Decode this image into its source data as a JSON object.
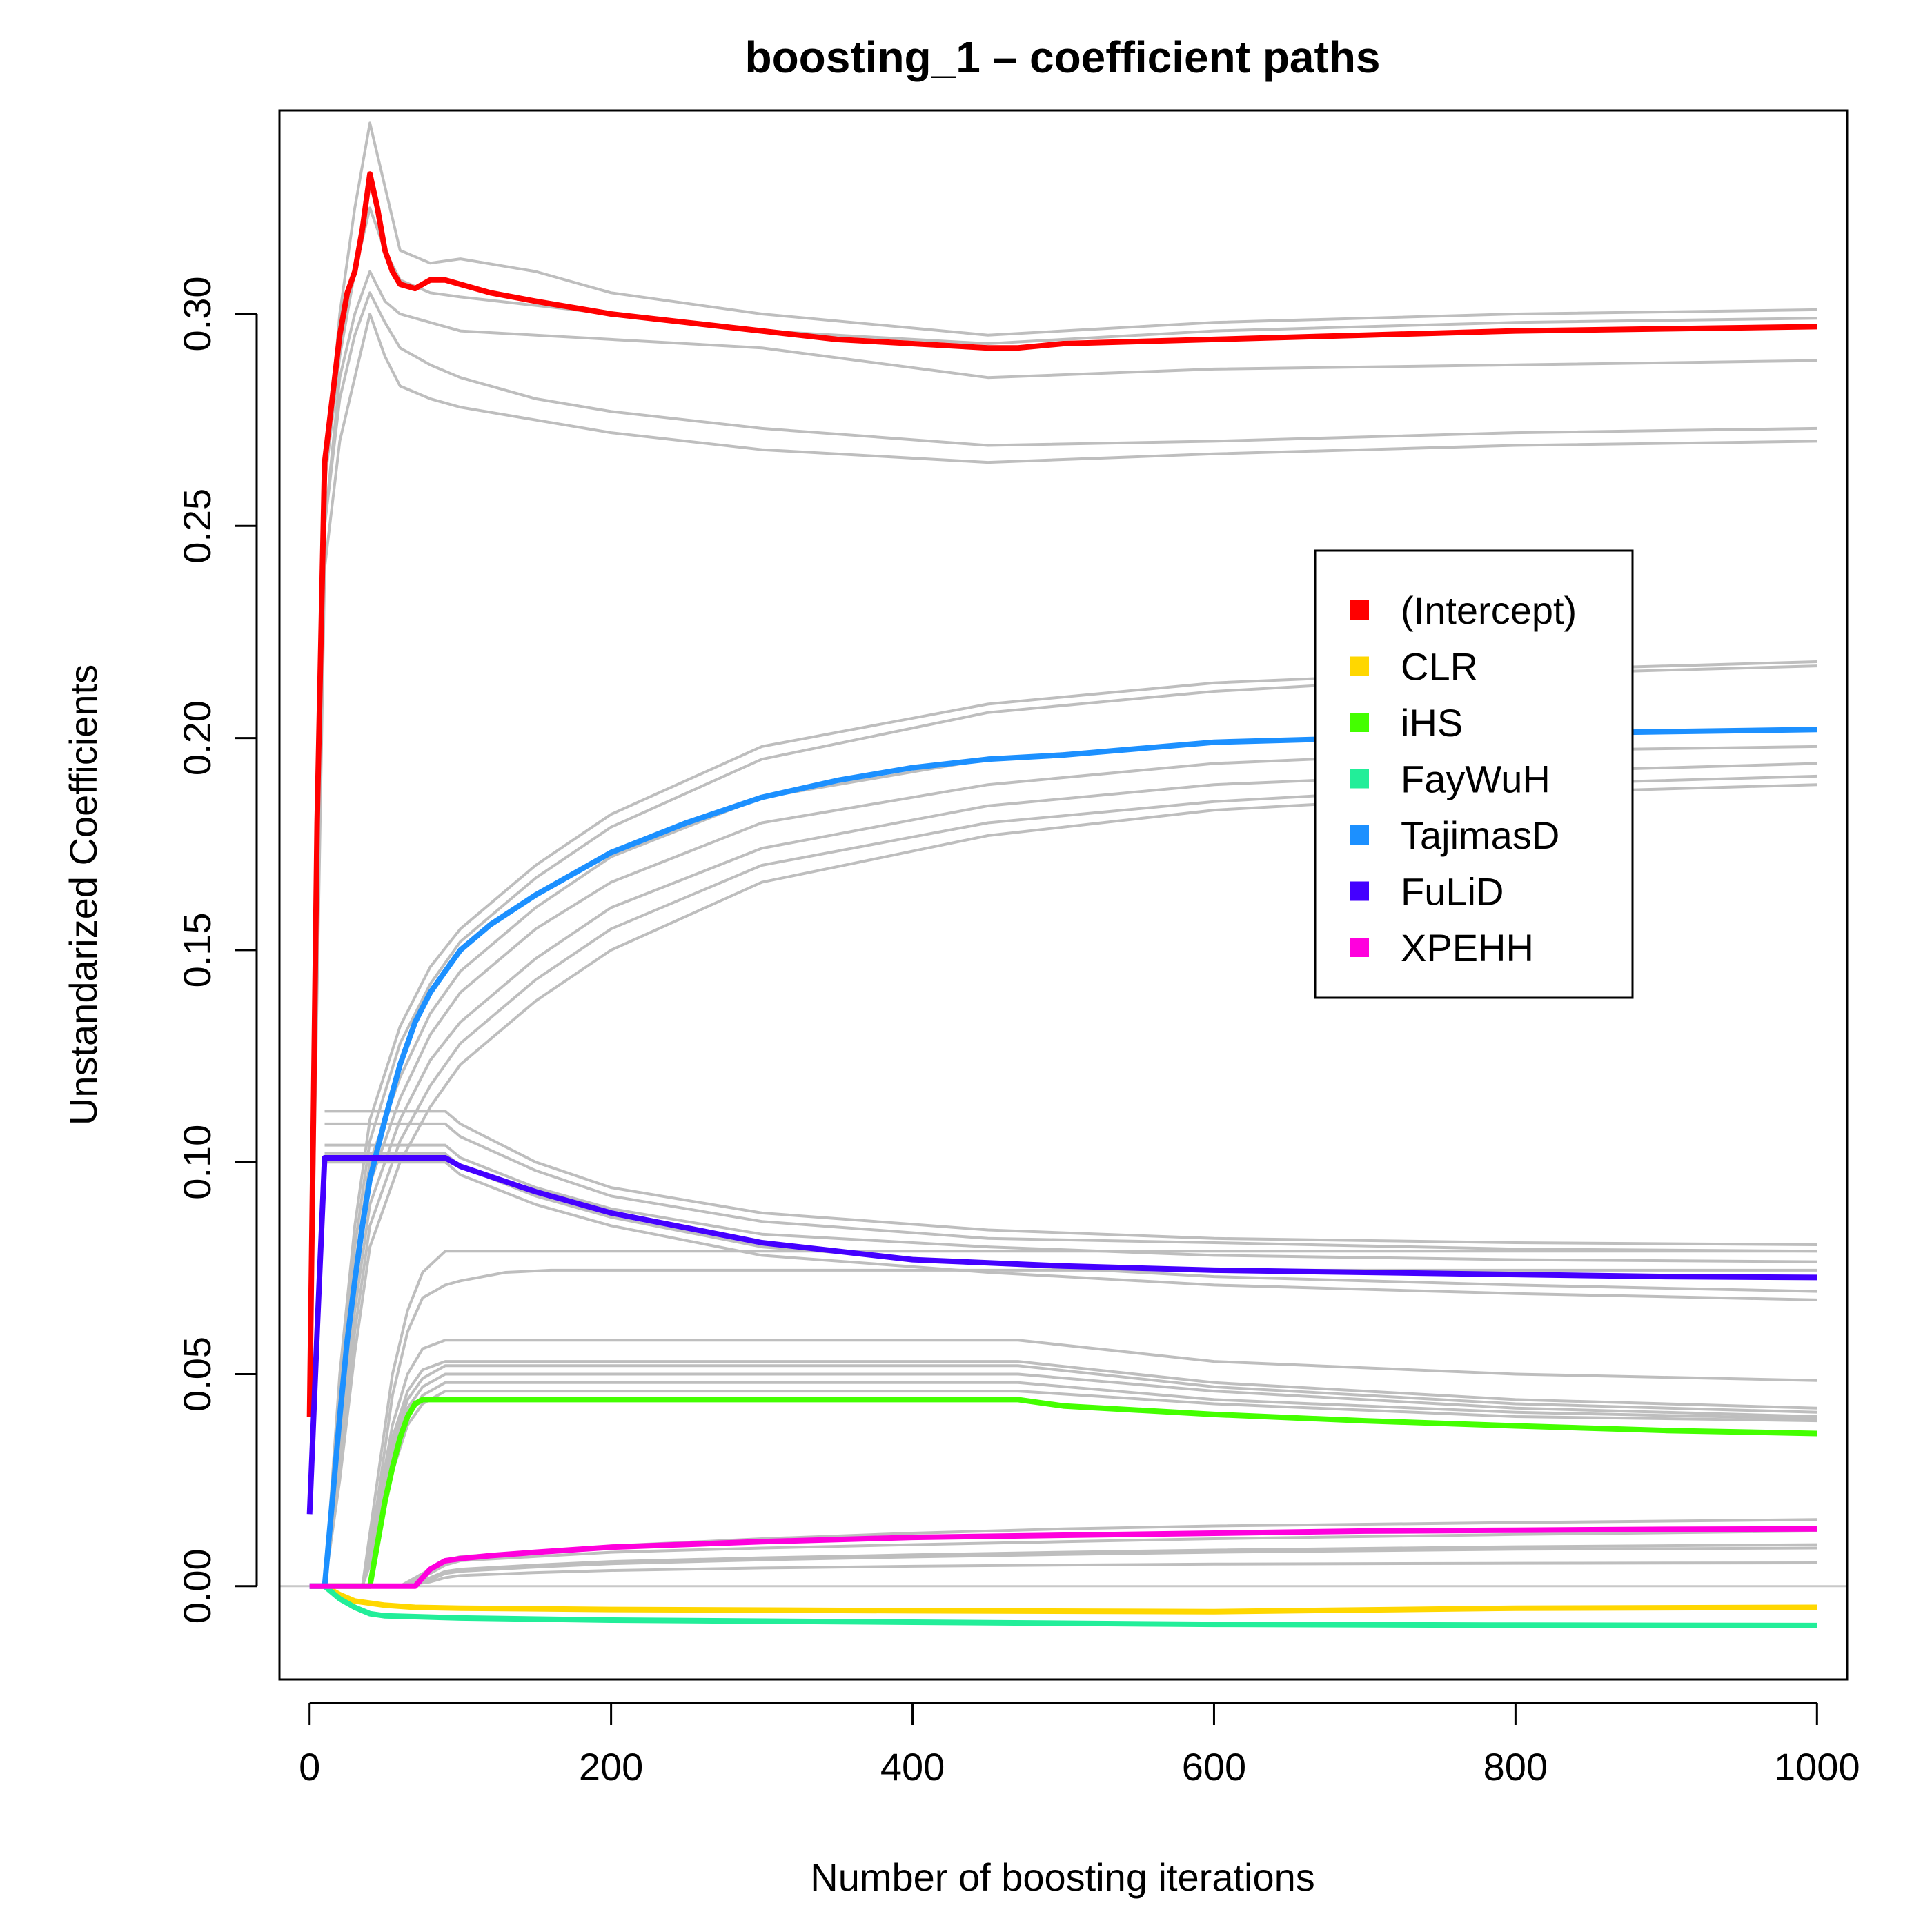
{
  "chart_data": {
    "type": "line",
    "title": "boosting_1  – coefficient paths",
    "xlabel": "Number of boosting iterations",
    "ylabel": "Unstandarized Coefficients",
    "xlim": [
      -20,
      1020
    ],
    "ylim": [
      -0.022,
      0.348
    ],
    "xticks": [
      0,
      200,
      400,
      600,
      800,
      1000
    ],
    "xtick_labels": [
      "0",
      "200",
      "400",
      "600",
      "800",
      "1000"
    ],
    "yticks": [
      0.0,
      0.05,
      0.1,
      0.15,
      0.2,
      0.25,
      0.3
    ],
    "ytick_labels": [
      "0.00",
      "0.05",
      "0.10",
      "0.15",
      "0.20",
      "0.25",
      "0.30"
    ],
    "grid": false,
    "legend_position": "right",
    "zero_line_color": "#c8c8c8",
    "background_paths_color": "#bebebe",
    "series": [
      {
        "name": "(Intercept)",
        "color": "#ff0000",
        "x": [
          0,
          5,
          10,
          15,
          20,
          25,
          30,
          35,
          40,
          45,
          50,
          55,
          60,
          70,
          80,
          90,
          100,
          120,
          150,
          200,
          250,
          300,
          350,
          400,
          450,
          470,
          500,
          600,
          700,
          800,
          900,
          1000
        ],
        "y": [
          0.04,
          0.18,
          0.265,
          0.28,
          0.295,
          0.305,
          0.31,
          0.32,
          0.333,
          0.325,
          0.315,
          0.31,
          0.307,
          0.306,
          0.308,
          0.308,
          0.307,
          0.305,
          0.303,
          0.3,
          0.298,
          0.296,
          0.294,
          0.293,
          0.292,
          0.292,
          0.293,
          0.294,
          0.295,
          0.296,
          0.2965,
          0.297
        ]
      },
      {
        "name": "CLR",
        "color": "#ffd700",
        "x": [
          10,
          20,
          30,
          50,
          70,
          100,
          200,
          400,
          600,
          800,
          1000
        ],
        "y": [
          0.0,
          -0.002,
          -0.0035,
          -0.0045,
          -0.005,
          -0.0052,
          -0.0055,
          -0.0058,
          -0.006,
          -0.0052,
          -0.005
        ]
      },
      {
        "name": "iHS",
        "color": "#44ff00",
        "x": [
          0,
          40,
          45,
          50,
          55,
          60,
          65,
          70,
          75,
          100,
          200,
          300,
          400,
          470,
          500,
          600,
          700,
          800,
          900,
          1000
        ],
        "y": [
          0.0,
          0.0,
          0.01,
          0.02,
          0.028,
          0.035,
          0.04,
          0.043,
          0.044,
          0.044,
          0.044,
          0.044,
          0.044,
          0.044,
          0.0425,
          0.0405,
          0.039,
          0.0378,
          0.0367,
          0.036
        ]
      },
      {
        "name": "FayWuH",
        "color": "#22ee99",
        "x": [
          10,
          20,
          30,
          40,
          50,
          70,
          100,
          200,
          400,
          600,
          800,
          1000
        ],
        "y": [
          0.0,
          -0.003,
          -0.005,
          -0.0065,
          -0.007,
          -0.0072,
          -0.0075,
          -0.008,
          -0.0085,
          -0.009,
          -0.0092,
          -0.0093
        ]
      },
      {
        "name": "TajimasD",
        "color": "#1c90ff",
        "x": [
          0,
          10,
          15,
          20,
          25,
          30,
          35,
          40,
          50,
          60,
          70,
          80,
          90,
          100,
          120,
          150,
          200,
          250,
          300,
          350,
          400,
          450,
          500,
          600,
          700,
          800,
          900,
          1000
        ],
        "y": [
          0.0,
          0.0,
          0.02,
          0.04,
          0.058,
          0.072,
          0.085,
          0.096,
          0.11,
          0.123,
          0.133,
          0.14,
          0.145,
          0.15,
          0.156,
          0.163,
          0.173,
          0.18,
          0.186,
          0.19,
          0.193,
          0.195,
          0.196,
          0.199,
          0.2,
          0.201,
          0.2015,
          0.202
        ]
      },
      {
        "name": "FuLiD",
        "color": "#4400ff",
        "x": [
          0,
          5,
          10,
          50,
          90,
          100,
          150,
          200,
          300,
          400,
          500,
          600,
          700,
          800,
          900,
          1000
        ],
        "y": [
          0.017,
          0.06,
          0.101,
          0.101,
          0.101,
          0.099,
          0.093,
          0.088,
          0.081,
          0.077,
          0.0755,
          0.0745,
          0.074,
          0.0735,
          0.073,
          0.0728
        ]
      },
      {
        "name": "XPEHH",
        "color": "#ff00dd",
        "x": [
          0,
          60,
          70,
          80,
          90,
          100,
          120,
          150,
          200,
          300,
          400,
          500,
          600,
          700,
          800,
          900,
          1000
        ],
        "y": [
          0.0,
          0.0,
          0.0,
          0.004,
          0.006,
          0.0065,
          0.0072,
          0.008,
          0.0092,
          0.0105,
          0.0115,
          0.012,
          0.0125,
          0.013,
          0.0132,
          0.0134,
          0.0135
        ]
      }
    ],
    "background_paths": [
      {
        "x": [
          0,
          10,
          20,
          30,
          40,
          50,
          60,
          80,
          100,
          150,
          200,
          300,
          450,
          600,
          800,
          1000
        ],
        "y": [
          0.04,
          0.26,
          0.3,
          0.325,
          0.345,
          0.33,
          0.315,
          0.312,
          0.313,
          0.31,
          0.305,
          0.3,
          0.295,
          0.298,
          0.3,
          0.301
        ]
      },
      {
        "x": [
          0,
          10,
          20,
          30,
          40,
          50,
          60,
          80,
          100,
          150,
          200,
          300,
          450,
          600,
          800,
          1000
        ],
        "y": [
          0.04,
          0.26,
          0.29,
          0.31,
          0.325,
          0.315,
          0.308,
          0.305,
          0.304,
          0.302,
          0.3,
          0.296,
          0.293,
          0.296,
          0.298,
          0.299
        ]
      },
      {
        "x": [
          0,
          10,
          20,
          30,
          40,
          50,
          60,
          80,
          100,
          150,
          200,
          300,
          450,
          600,
          800,
          1000
        ],
        "y": [
          0.04,
          0.25,
          0.285,
          0.3,
          0.31,
          0.303,
          0.3,
          0.298,
          0.296,
          0.295,
          0.294,
          0.292,
          0.285,
          0.287,
          0.288,
          0.289
        ]
      },
      {
        "x": [
          0,
          10,
          20,
          30,
          40,
          50,
          60,
          80,
          100,
          150,
          200,
          300,
          450,
          600,
          800,
          1000
        ],
        "y": [
          0.04,
          0.25,
          0.28,
          0.295,
          0.305,
          0.298,
          0.292,
          0.288,
          0.285,
          0.28,
          0.277,
          0.273,
          0.269,
          0.27,
          0.272,
          0.273
        ]
      },
      {
        "x": [
          0,
          10,
          20,
          30,
          40,
          50,
          60,
          80,
          100,
          150,
          200,
          300,
          450,
          600,
          800,
          1000
        ],
        "y": [
          0.04,
          0.24,
          0.27,
          0.285,
          0.3,
          0.29,
          0.283,
          0.28,
          0.278,
          0.275,
          0.272,
          0.268,
          0.265,
          0.267,
          0.269,
          0.27
        ]
      },
      {
        "x": [
          0,
          10,
          20,
          30,
          40,
          60,
          80,
          100,
          150,
          200,
          300,
          450,
          600,
          800,
          1000
        ],
        "y": [
          0.0,
          0.0,
          0.05,
          0.085,
          0.11,
          0.132,
          0.146,
          0.155,
          0.17,
          0.182,
          0.198,
          0.208,
          0.213,
          0.216,
          0.218
        ]
      },
      {
        "x": [
          0,
          10,
          20,
          30,
          40,
          60,
          80,
          100,
          150,
          200,
          300,
          450,
          600,
          800,
          1000
        ],
        "y": [
          0.0,
          0.0,
          0.045,
          0.08,
          0.105,
          0.128,
          0.142,
          0.152,
          0.167,
          0.179,
          0.195,
          0.206,
          0.211,
          0.215,
          0.217
        ]
      },
      {
        "x": [
          0,
          10,
          20,
          30,
          40,
          60,
          80,
          100,
          150,
          200,
          300,
          450,
          600,
          800,
          1000
        ],
        "y": [
          0.0,
          0.0,
          0.04,
          0.075,
          0.1,
          0.12,
          0.135,
          0.145,
          0.16,
          0.172,
          0.186,
          0.195,
          0.199,
          0.201,
          0.202
        ]
      },
      {
        "x": [
          0,
          10,
          20,
          30,
          40,
          60,
          80,
          100,
          150,
          200,
          300,
          450,
          600,
          800,
          1000
        ],
        "y": [
          0.0,
          0.0,
          0.035,
          0.07,
          0.095,
          0.115,
          0.13,
          0.14,
          0.155,
          0.166,
          0.18,
          0.189,
          0.194,
          0.197,
          0.198
        ]
      },
      {
        "x": [
          0,
          10,
          20,
          30,
          40,
          60,
          80,
          100,
          150,
          200,
          300,
          450,
          600,
          800,
          1000
        ],
        "y": [
          0.0,
          0.0,
          0.03,
          0.065,
          0.09,
          0.11,
          0.124,
          0.133,
          0.148,
          0.16,
          0.174,
          0.184,
          0.189,
          0.192,
          0.194
        ]
      },
      {
        "x": [
          0,
          10,
          20,
          30,
          40,
          60,
          80,
          100,
          150,
          200,
          300,
          450,
          600,
          800,
          1000
        ],
        "y": [
          0.0,
          0.0,
          0.028,
          0.06,
          0.085,
          0.105,
          0.118,
          0.128,
          0.143,
          0.155,
          0.17,
          0.18,
          0.185,
          0.189,
          0.191
        ]
      },
      {
        "x": [
          0,
          10,
          20,
          30,
          40,
          60,
          80,
          100,
          150,
          200,
          300,
          450,
          600,
          800,
          1000
        ],
        "y": [
          0.0,
          0.0,
          0.025,
          0.055,
          0.08,
          0.1,
          0.113,
          0.123,
          0.138,
          0.15,
          0.166,
          0.177,
          0.183,
          0.187,
          0.189
        ]
      },
      {
        "x": [
          10,
          90,
          100,
          150,
          200,
          300,
          450,
          600,
          800,
          1000
        ],
        "y": [
          0.112,
          0.112,
          0.109,
          0.1,
          0.094,
          0.088,
          0.084,
          0.082,
          0.081,
          0.0805
        ]
      },
      {
        "x": [
          10,
          90,
          100,
          150,
          200,
          300,
          450,
          600,
          800,
          1000
        ],
        "y": [
          0.109,
          0.109,
          0.106,
          0.098,
          0.092,
          0.086,
          0.082,
          0.081,
          0.0795,
          0.079
        ]
      },
      {
        "x": [
          10,
          90,
          100,
          150,
          200,
          300,
          450,
          600,
          800,
          1000
        ],
        "y": [
          0.104,
          0.104,
          0.101,
          0.094,
          0.089,
          0.083,
          0.08,
          0.078,
          0.077,
          0.0765
        ]
      },
      {
        "x": [
          10,
          90,
          100,
          150,
          200,
          300,
          450,
          600,
          800,
          1000
        ],
        "y": [
          0.102,
          0.102,
          0.099,
          0.092,
          0.087,
          0.08,
          0.076,
          0.073,
          0.071,
          0.0695
        ]
      },
      {
        "x": [
          10,
          90,
          100,
          150,
          200,
          300,
          450,
          600,
          800,
          1000
        ],
        "y": [
          0.1,
          0.1,
          0.097,
          0.09,
          0.085,
          0.078,
          0.074,
          0.071,
          0.069,
          0.0675
        ]
      },
      {
        "x": [
          35,
          45,
          55,
          65,
          75,
          90,
          150,
          1000
        ],
        "y": [
          0.0,
          0.025,
          0.05,
          0.065,
          0.074,
          0.079,
          0.079,
          0.079
        ]
      },
      {
        "x": [
          35,
          45,
          55,
          65,
          75,
          90,
          100,
          130,
          160,
          1000
        ],
        "y": [
          0.0,
          0.02,
          0.045,
          0.06,
          0.068,
          0.071,
          0.072,
          0.074,
          0.0745,
          0.0745
        ]
      },
      {
        "x": [
          35,
          45,
          55,
          65,
          75,
          90,
          100,
          470,
          600,
          800,
          1000
        ],
        "y": [
          0.0,
          0.018,
          0.038,
          0.05,
          0.056,
          0.058,
          0.058,
          0.058,
          0.053,
          0.05,
          0.0485
        ]
      },
      {
        "x": [
          35,
          45,
          55,
          65,
          75,
          90,
          100,
          470,
          600,
          800,
          1000
        ],
        "y": [
          0.0,
          0.016,
          0.035,
          0.046,
          0.051,
          0.053,
          0.053,
          0.053,
          0.048,
          0.044,
          0.042
        ]
      },
      {
        "x": [
          35,
          45,
          55,
          65,
          75,
          90,
          100,
          470,
          600,
          800,
          1000
        ],
        "y": [
          0.0,
          0.014,
          0.033,
          0.044,
          0.049,
          0.052,
          0.052,
          0.052,
          0.047,
          0.043,
          0.041
        ]
      },
      {
        "x": [
          35,
          45,
          55,
          65,
          75,
          90,
          100,
          470,
          600,
          800,
          1000
        ],
        "y": [
          0.0,
          0.012,
          0.031,
          0.042,
          0.047,
          0.05,
          0.05,
          0.05,
          0.046,
          0.042,
          0.04
        ]
      },
      {
        "x": [
          35,
          45,
          55,
          65,
          75,
          90,
          100,
          470,
          600,
          800,
          1000
        ],
        "y": [
          0.0,
          0.011,
          0.029,
          0.04,
          0.045,
          0.048,
          0.048,
          0.048,
          0.044,
          0.041,
          0.0395
        ]
      },
      {
        "x": [
          35,
          45,
          55,
          65,
          75,
          90,
          100,
          470,
          600,
          800,
          1000
        ],
        "y": [
          0.0,
          0.01,
          0.027,
          0.038,
          0.043,
          0.046,
          0.046,
          0.046,
          0.043,
          0.04,
          0.039
        ]
      },
      {
        "x": [
          60,
          80,
          90,
          100,
          150,
          200,
          300,
          400,
          500,
          600,
          800,
          1000
        ],
        "y": [
          0.0,
          0.004,
          0.006,
          0.007,
          0.008,
          0.0095,
          0.0112,
          0.0125,
          0.0135,
          0.0142,
          0.015,
          0.0157
        ]
      },
      {
        "x": [
          60,
          80,
          90,
          100,
          150,
          200,
          300,
          400,
          500,
          600,
          800,
          1000
        ],
        "y": [
          0.0,
          0.003,
          0.005,
          0.006,
          0.007,
          0.008,
          0.009,
          0.0098,
          0.0105,
          0.0112,
          0.0122,
          0.013
        ]
      },
      {
        "x": [
          60,
          80,
          90,
          100,
          150,
          200,
          300,
          400,
          500,
          600,
          800,
          1000
        ],
        "y": [
          0.0,
          0.002,
          0.0035,
          0.004,
          0.005,
          0.0058,
          0.0067,
          0.0074,
          0.008,
          0.0085,
          0.0093,
          0.0098
        ]
      },
      {
        "x": [
          60,
          80,
          90,
          100,
          150,
          200,
          300,
          400,
          500,
          600,
          800,
          1000
        ],
        "y": [
          0.0,
          0.0015,
          0.003,
          0.0035,
          0.0045,
          0.0053,
          0.0062,
          0.0069,
          0.0075,
          0.008,
          0.0087,
          0.009
        ]
      },
      {
        "x": [
          60,
          80,
          90,
          100,
          150,
          200,
          300,
          400,
          500,
          600,
          800,
          1000
        ],
        "y": [
          0.0,
          0.001,
          0.002,
          0.0025,
          0.0032,
          0.0037,
          0.0043,
          0.0047,
          0.005,
          0.0052,
          0.0054,
          0.0055
        ]
      }
    ]
  }
}
